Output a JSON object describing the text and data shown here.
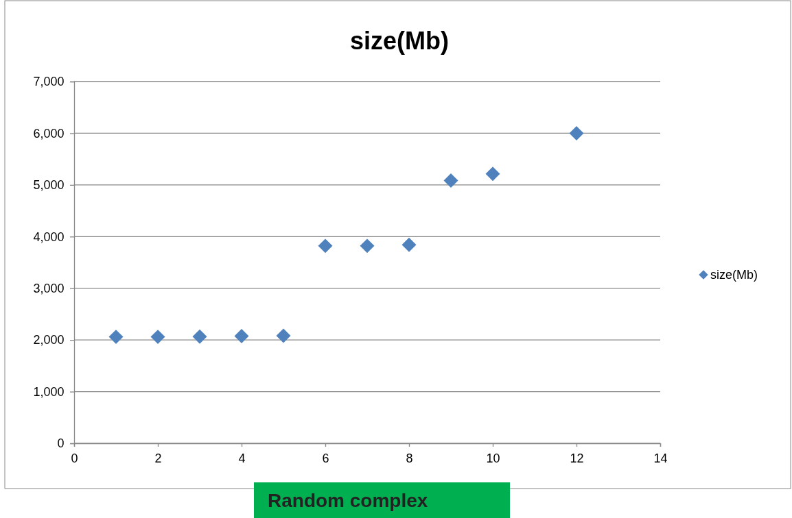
{
  "chart_data": {
    "type": "scatter",
    "title": "size(Mb)",
    "x": [
      1,
      2,
      3,
      4,
      5,
      6,
      7,
      8,
      9,
      10,
      12
    ],
    "series": [
      {
        "name": "size(Mb)",
        "color": "#4f81bd",
        "values": [
          2060,
          2060,
          2065,
          2075,
          2080,
          3820,
          3820,
          3840,
          5085,
          5215,
          6000
        ]
      }
    ],
    "xlim": [
      0,
      14
    ],
    "xticks": [
      0,
      2,
      4,
      6,
      8,
      10,
      12,
      14
    ],
    "ylim": [
      0,
      7000
    ],
    "yticks": [
      {
        "value": 0,
        "label": "0"
      },
      {
        "value": 1000,
        "label": "1,000"
      },
      {
        "value": 2000,
        "label": "2,000"
      },
      {
        "value": 3000,
        "label": "3,000"
      },
      {
        "value": 4000,
        "label": "4,000"
      },
      {
        "value": 5000,
        "label": "5,000"
      },
      {
        "value": 6000,
        "label": "6,000"
      },
      {
        "value": 7000,
        "label": "7,000"
      }
    ],
    "grid": "y",
    "legend": "right",
    "marker": "diamond",
    "annotations": [
      "Random complex"
    ]
  }
}
